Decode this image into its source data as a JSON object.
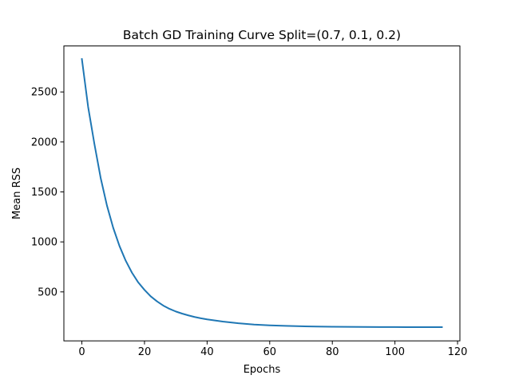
{
  "chart_data": {
    "type": "line",
    "title": "Batch GD Training Curve Split=(0.7, 0.1, 0.2)",
    "xlabel": "Epochs",
    "ylabel": "Mean RSS",
    "xlim": [
      -5.75,
      120.75
    ],
    "ylim": [
      10,
      2960
    ],
    "xticks": [
      0,
      20,
      40,
      60,
      80,
      100,
      120
    ],
    "yticks": [
      500,
      1000,
      1500,
      2000,
      2500
    ],
    "grid": false,
    "series": [
      {
        "color": "#1f77b4",
        "x": [
          0,
          2,
          4,
          6,
          8,
          10,
          12,
          14,
          16,
          18,
          20,
          22,
          24,
          26,
          28,
          30,
          32,
          34,
          36,
          38,
          40,
          45,
          50,
          55,
          60,
          65,
          70,
          75,
          80,
          85,
          90,
          95,
          100,
          105,
          110,
          115
        ],
        "y": [
          2829,
          2350,
          1980,
          1640,
          1365,
          1142,
          960,
          812,
          692,
          595,
          520,
          455,
          405,
          363,
          330,
          304,
          283,
          265,
          249,
          236,
          225,
          203,
          186,
          173,
          165,
          160,
          156,
          153,
          151,
          150,
          149,
          148,
          148,
          147,
          147,
          147
        ]
      }
    ]
  }
}
